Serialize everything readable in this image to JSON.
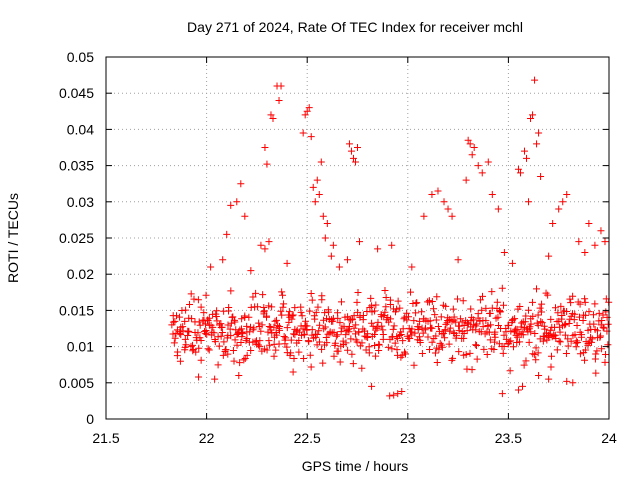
{
  "chart_data": {
    "type": "scatter",
    "title": "Day 271 of 2024, Rate Of TEC Index for receiver mchl",
    "xlabel": "GPS time / hours",
    "ylabel": "ROTI / TECUs",
    "xlim": [
      21.5,
      24
    ],
    "ylim": [
      0,
      0.05
    ],
    "x_ticks": [
      21.5,
      22,
      22.5,
      23,
      23.5,
      24
    ],
    "x_tick_labels": [
      "21.5",
      "22",
      "22.5",
      "23",
      "23.5",
      "24"
    ],
    "y_ticks": [
      0,
      0.005,
      0.01,
      0.015,
      0.02,
      0.025,
      0.03,
      0.035,
      0.04,
      0.045,
      0.05
    ],
    "y_tick_labels": [
      "0",
      "0.005",
      "0.01",
      "0.015",
      "0.02",
      "0.025",
      "0.03",
      "0.035",
      "0.04",
      "0.045",
      "0.05"
    ],
    "grid": true,
    "marker": "+",
    "marker_color": "#ff0000",
    "series": [
      {
        "name": "ROTI",
        "points": [
          [
            22.17,
            0.0325
          ],
          [
            22.15,
            0.03
          ],
          [
            22.12,
            0.0295
          ],
          [
            22.19,
            0.028
          ],
          [
            22.1,
            0.0255
          ],
          [
            22.08,
            0.022
          ],
          [
            22.29,
            0.0375
          ],
          [
            22.3,
            0.0352
          ],
          [
            22.32,
            0.042
          ],
          [
            22.33,
            0.0415
          ],
          [
            22.35,
            0.046
          ],
          [
            22.37,
            0.046
          ],
          [
            22.36,
            0.044
          ],
          [
            22.27,
            0.024
          ],
          [
            22.29,
            0.0235
          ],
          [
            22.31,
            0.0245
          ],
          [
            22.48,
            0.0395
          ],
          [
            22.5,
            0.0425
          ],
          [
            22.51,
            0.043
          ],
          [
            22.49,
            0.042
          ],
          [
            22.52,
            0.039
          ],
          [
            22.55,
            0.033
          ],
          [
            22.57,
            0.0355
          ],
          [
            22.56,
            0.031
          ],
          [
            22.58,
            0.028
          ],
          [
            22.6,
            0.027
          ],
          [
            22.59,
            0.025
          ],
          [
            22.63,
            0.024
          ],
          [
            22.62,
            0.0225
          ],
          [
            22.54,
            0.03
          ],
          [
            22.53,
            0.032
          ],
          [
            22.71,
            0.038
          ],
          [
            22.72,
            0.037
          ],
          [
            22.73,
            0.036
          ],
          [
            22.75,
            0.0375
          ],
          [
            22.74,
            0.0355
          ],
          [
            22.7,
            0.022
          ],
          [
            22.76,
            0.0245
          ],
          [
            23.08,
            0.028
          ],
          [
            23.12,
            0.031
          ],
          [
            23.15,
            0.0315
          ],
          [
            23.18,
            0.03
          ],
          [
            23.2,
            0.029
          ],
          [
            23.22,
            0.028
          ],
          [
            23.3,
            0.0385
          ],
          [
            23.31,
            0.038
          ],
          [
            23.32,
            0.0365
          ],
          [
            23.33,
            0.0375
          ],
          [
            23.35,
            0.035
          ],
          [
            23.29,
            0.033
          ],
          [
            23.37,
            0.034
          ],
          [
            23.4,
            0.0355
          ],
          [
            23.42,
            0.031
          ],
          [
            23.45,
            0.029
          ],
          [
            23.55,
            0.0345
          ],
          [
            23.56,
            0.034
          ],
          [
            23.58,
            0.037
          ],
          [
            23.59,
            0.036
          ],
          [
            23.61,
            0.0415
          ],
          [
            23.62,
            0.042
          ],
          [
            23.63,
            0.0468
          ],
          [
            23.64,
            0.038
          ],
          [
            23.65,
            0.0395
          ],
          [
            23.66,
            0.0335
          ],
          [
            23.6,
            0.03
          ],
          [
            23.72,
            0.027
          ],
          [
            23.75,
            0.029
          ],
          [
            23.77,
            0.03
          ],
          [
            23.79,
            0.031
          ],
          [
            23.85,
            0.0245
          ],
          [
            23.9,
            0.027
          ],
          [
            23.93,
            0.024
          ],
          [
            23.96,
            0.026
          ],
          [
            23.98,
            0.0245
          ],
          [
            22.02,
            0.021
          ],
          [
            22.22,
            0.0205
          ],
          [
            22.4,
            0.0215
          ],
          [
            22.66,
            0.021
          ],
          [
            22.85,
            0.0235
          ],
          [
            22.92,
            0.024
          ],
          [
            23.02,
            0.021
          ],
          [
            23.25,
            0.022
          ],
          [
            23.48,
            0.023
          ],
          [
            23.52,
            0.0215
          ],
          [
            23.7,
            0.0225
          ],
          [
            23.88,
            0.023
          ],
          [
            22.93,
            0.0033
          ],
          [
            22.95,
            0.0035
          ],
          [
            22.91,
            0.0032
          ],
          [
            22.97,
            0.0038
          ],
          [
            23.47,
            0.0035
          ],
          [
            23.55,
            0.004
          ],
          [
            23.57,
            0.0045
          ],
          [
            22.82,
            0.0045
          ],
          [
            22.04,
            0.0055
          ],
          [
            21.96,
            0.0058
          ],
          [
            22.16,
            0.006
          ],
          [
            22.43,
            0.0065
          ],
          [
            23.7,
            0.0055
          ],
          [
            23.79,
            0.0052
          ],
          [
            23.82,
            0.005
          ],
          [
            23.65,
            0.006
          ]
        ],
        "dense_band": {
          "x_start": 21.83,
          "x_end": 24.0,
          "x_step": 0.0085,
          "y_center": 0.0125,
          "y_spread": 0.0065,
          "y_min": 0.005,
          "y_max": 0.02,
          "description": "dense band of samples between 0.005 and 0.020 TECU across the whole time range"
        }
      }
    ]
  }
}
